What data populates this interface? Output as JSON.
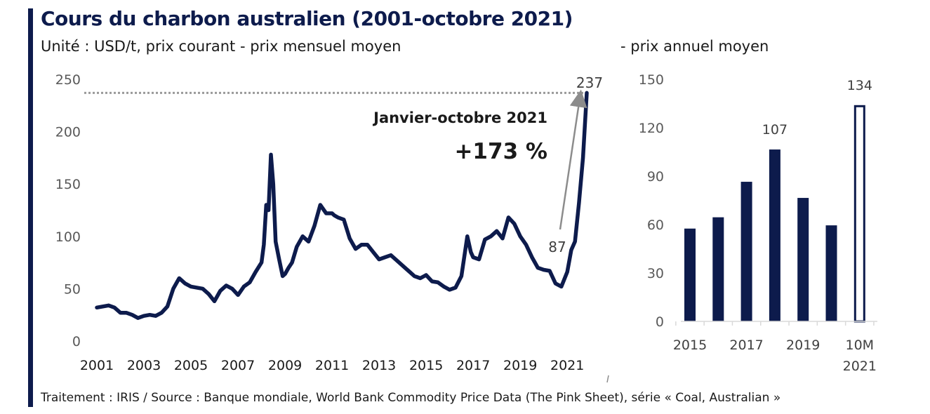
{
  "header": {
    "title": "Cours du charbon australien (2001-octobre 2021)",
    "subtitle_left": "Unité : USD/t, prix courant - prix mensuel moyen",
    "subtitle_right": "- prix annuel moyen"
  },
  "footer": {
    "source": "Traitement : IRIS / Source : Banque mondiale, World Bank Commodity Price Data (The Pink Sheet), série « Coal, Australian »"
  },
  "colors": {
    "series": "#0d1b4c",
    "arrow": "#8c8c8c",
    "axis": "#d9d9d9",
    "tick_text": "#595959"
  },
  "chart_data": [
    {
      "type": "line",
      "ylim": [
        0,
        250
      ],
      "xlim": [
        2001,
        2021.83
      ],
      "y_ticks": [
        0,
        50,
        100,
        150,
        200,
        250
      ],
      "x_ticks": [
        2001,
        2003,
        2005,
        2007,
        2009,
        2011,
        2013,
        2015,
        2017,
        2019,
        2021
      ],
      "series": [
        {
          "x": [
            2001.0,
            2001.25,
            2001.5,
            2001.75,
            2002.0,
            2002.25,
            2002.5,
            2002.75,
            2003.0,
            2003.25,
            2003.5,
            2003.75,
            2004.0,
            2004.25,
            2004.5,
            2004.75,
            2005.0,
            2005.25,
            2005.5,
            2005.75,
            2006.0,
            2006.25,
            2006.5,
            2006.75,
            2007.0,
            2007.25,
            2007.5,
            2007.75,
            2008.0,
            2008.1,
            2008.2,
            2008.3,
            2008.4,
            2008.5,
            2008.6,
            2008.75,
            2008.9,
            2009.0,
            2009.15,
            2009.3,
            2009.5,
            2009.75,
            2010.0,
            2010.25,
            2010.5,
            2010.75,
            2011.0,
            2011.1,
            2011.25,
            2011.5,
            2011.75,
            2012.0,
            2012.25,
            2012.5,
            2012.75,
            2013.0,
            2013.25,
            2013.5,
            2013.75,
            2014.0,
            2014.25,
            2014.5,
            2014.75,
            2015.0,
            2015.25,
            2015.5,
            2015.75,
            2016.0,
            2016.25,
            2016.5,
            2016.75,
            2016.9,
            2017.0,
            2017.25,
            2017.5,
            2017.75,
            2018.0,
            2018.25,
            2018.5,
            2018.75,
            2019.0,
            2019.25,
            2019.5,
            2019.75,
            2020.0,
            2020.25,
            2020.5,
            2020.75,
            2021.0,
            2021.17,
            2021.33,
            2021.5,
            2021.67,
            2021.83
          ],
          "values": [
            32,
            33,
            34,
            32,
            27,
            27,
            25,
            22,
            24,
            25,
            24,
            27,
            33,
            50,
            60,
            55,
            52,
            51,
            50,
            45,
            38,
            48,
            53,
            50,
            44,
            52,
            56,
            66,
            75,
            92,
            130,
            125,
            178,
            150,
            95,
            78,
            62,
            64,
            70,
            75,
            90,
            100,
            95,
            110,
            130,
            122,
            122,
            120,
            118,
            116,
            98,
            88,
            92,
            92,
            85,
            78,
            80,
            82,
            77,
            72,
            67,
            62,
            60,
            63,
            57,
            56,
            52,
            49,
            51,
            62,
            100,
            85,
            80,
            78,
            97,
            100,
            105,
            98,
            118,
            112,
            100,
            92,
            80,
            70,
            68,
            67,
            55,
            52,
            66,
            87,
            95,
            132,
            175,
            237
          ]
        }
      ],
      "annotations": {
        "peak_label": "237",
        "start_label": "87",
        "period_label": "Janvier-octobre 2021",
        "change_label": "+173 %"
      }
    },
    {
      "type": "bar",
      "ylim": [
        0,
        150
      ],
      "y_ticks": [
        0,
        30,
        60,
        90,
        120,
        150
      ],
      "categories": [
        "2015",
        "2016",
        "2017",
        "2018",
        "2019",
        "2020",
        "10M 2021"
      ],
      "x_tick_labels": [
        {
          "category": "2015",
          "lines": [
            "2015"
          ]
        },
        {
          "category": "2017",
          "lines": [
            "2017"
          ]
        },
        {
          "category": "2019",
          "lines": [
            "2019"
          ]
        },
        {
          "category": "10M 2021",
          "lines": [
            "10M",
            "2021"
          ]
        }
      ],
      "values": [
        57.5,
        64.5,
        86.5,
        106.5,
        76.5,
        59.5,
        134
      ],
      "data_labels": [
        {
          "index": 3,
          "text": "107"
        },
        {
          "index": 6,
          "text": "134"
        }
      ],
      "hollow_index": 6
    }
  ]
}
